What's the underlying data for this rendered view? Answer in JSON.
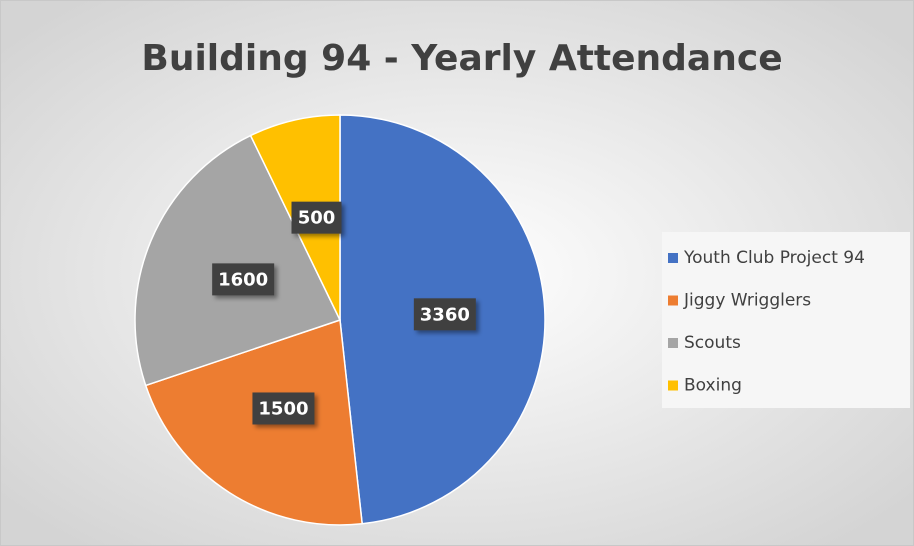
{
  "chart_data": {
    "type": "pie",
    "title": "Building 94 - Yearly Attendance",
    "categories": [
      "Youth Club Project 94",
      "Jiggy Wrigglers",
      "Scouts",
      "Boxing"
    ],
    "values": [
      3360,
      1500,
      1600,
      500
    ],
    "colors": [
      "#4472c4",
      "#ed7d31",
      "#a5a5a5",
      "#ffc000"
    ],
    "legend": "right"
  }
}
